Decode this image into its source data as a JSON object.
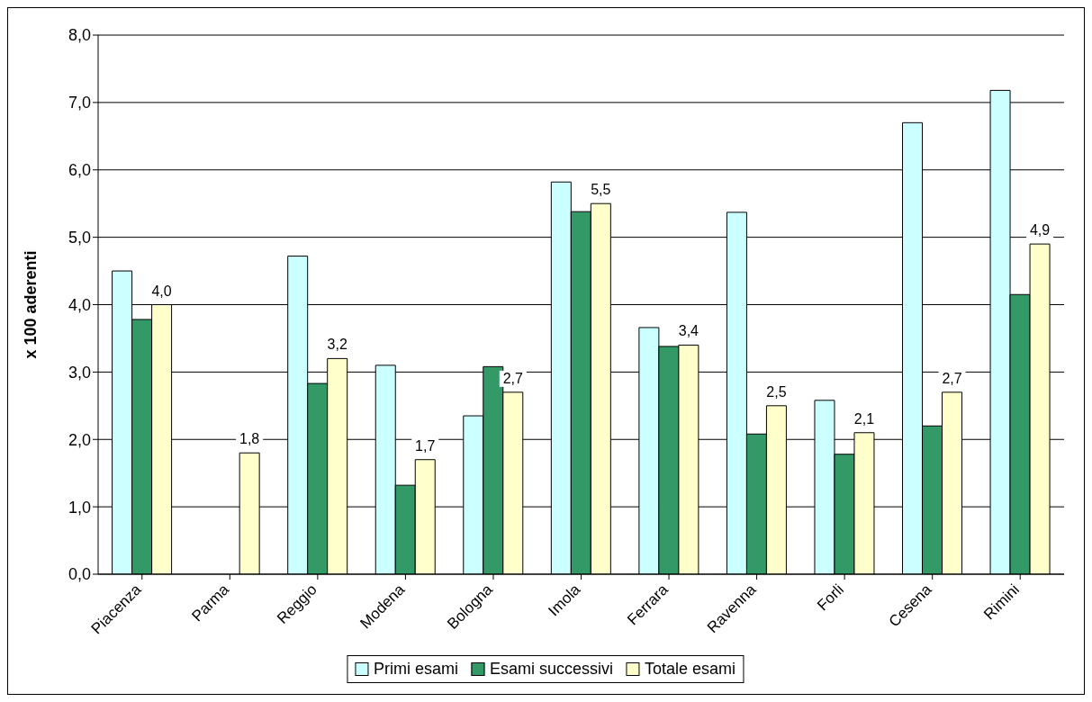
{
  "chart_data": {
    "type": "bar",
    "ylabel": "x 100 aderenti",
    "categories": [
      "Piacenza",
      "Parma",
      "Reggio",
      "Modena",
      "Bologna",
      "Imola",
      "Ferrara",
      "Ravenna",
      "Forli",
      "Cesena",
      "Rimini"
    ],
    "series": [
      {
        "name": "Primi esami",
        "color": "#ccffff",
        "values": [
          4.5,
          null,
          4.72,
          3.1,
          2.35,
          5.82,
          3.66,
          5.37,
          2.58,
          6.7,
          7.18
        ]
      },
      {
        "name": "Esami successivi",
        "color": "#339966",
        "values": [
          3.78,
          null,
          2.83,
          1.32,
          3.08,
          5.38,
          3.38,
          2.08,
          1.78,
          2.2,
          4.15
        ]
      },
      {
        "name": "Totale esami",
        "color": "#ffffcc",
        "values": [
          4.0,
          1.8,
          3.2,
          1.7,
          2.7,
          5.5,
          3.4,
          2.5,
          2.1,
          2.7,
          4.9
        ],
        "value_labels": [
          "4,0",
          "1,8",
          "3,2",
          "1,7",
          "2,7",
          "5,5",
          "3,4",
          "2,5",
          "2,1",
          "2,7",
          "4,9"
        ]
      }
    ],
    "ylim": [
      0,
      8
    ],
    "yticks": [
      {
        "value": 0,
        "label": "0,0"
      },
      {
        "value": 1,
        "label": "1,0"
      },
      {
        "value": 2,
        "label": "2,0"
      },
      {
        "value": 3,
        "label": "3,0"
      },
      {
        "value": 4,
        "label": "4,0"
      },
      {
        "value": 5,
        "label": "5,0"
      },
      {
        "value": 6,
        "label": "6,0"
      },
      {
        "value": 7,
        "label": "7,0"
      },
      {
        "value": 8,
        "label": "8,0"
      }
    ],
    "grid": "y",
    "legend": "bottom"
  }
}
